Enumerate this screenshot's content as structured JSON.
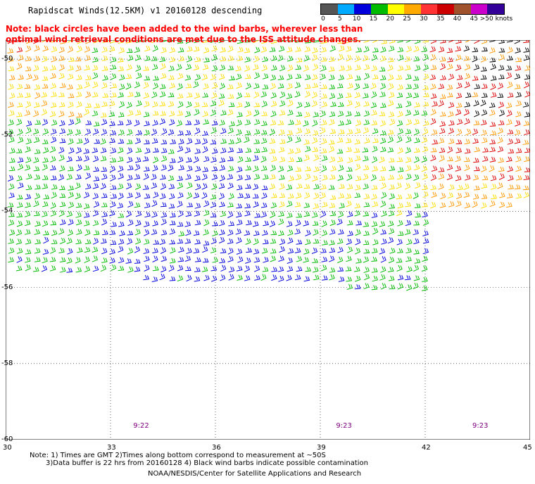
{
  "header": {
    "title": "Rapidscat Winds(12.5KM) v1 20160128 descending",
    "note_line1": "Note: black circles have been added to the wind barbs, wherever less than",
    "note_line2": "optimal wind retrieval conditions are met due to the ISS attitude changes."
  },
  "legend": {
    "labels": [
      "0",
      "5",
      "10",
      "15",
      "20",
      "25",
      "30",
      "35",
      "40",
      "45",
      ">50 knots"
    ],
    "colors": [
      "#555555",
      "#00aaff",
      "#0000dd",
      "#00bb00",
      "#ffff00",
      "#ffaa00",
      "#ff3333",
      "#cc0000",
      "#a0522d",
      "#cc00cc",
      "#330099"
    ]
  },
  "map": {
    "lon_ticks": [
      "30",
      "33",
      "36",
      "39",
      "42",
      "45"
    ],
    "lat_ticks": [
      "-50",
      "-52",
      "-54",
      "-56",
      "-58",
      "-60"
    ],
    "time_labels": [
      "9:22",
      "9:23",
      "9:23"
    ],
    "barb_colors": {
      "calm": "#00aaff",
      "light": "#0000dd",
      "moderate": "#00bb00",
      "fresh": "#ffdd00",
      "strong": "#ff9900",
      "gale": "#dd0000",
      "flag": "#000000"
    }
  },
  "footer": {
    "line1": "Note: 1) Times are GMT 2)Times along bottom correspond to measurement at ~50S",
    "line2": "3)Data buffer is 22 hrs from 20160128 4) Black wind barbs indicate possible contamination",
    "line3": "NOAA/NESDIS/Center for Satellite Applications and Research"
  }
}
